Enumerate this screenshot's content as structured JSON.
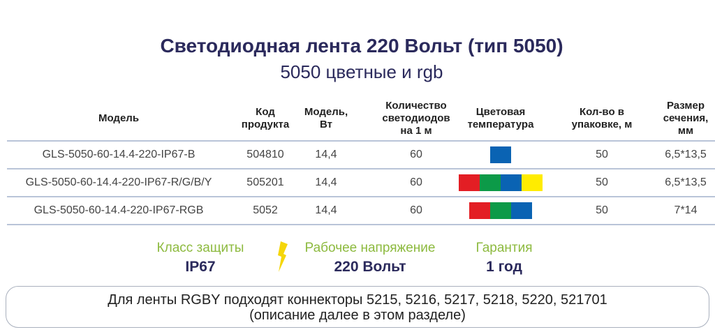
{
  "title": "Светодиодная лента 220 Вольт (тип 5050)",
  "subtitle": "5050 цветные и rgb",
  "table": {
    "headers": [
      "Модель",
      "Код\nпродукта",
      "Модель,\nВт",
      "Количество\nсветодиодов\nна 1 м",
      "Цветовая\nтемпература",
      "Кол-во в\nупаковке, м",
      "Размер\nсечения,\nмм"
    ],
    "rows": [
      {
        "model": "GLS-5050-60-14.4-220-IP67-B",
        "code": "504810",
        "watts": "14,4",
        "leds": "60",
        "colors": [
          "#0a63b3"
        ],
        "pack": "50",
        "size": "6,5*13,5"
      },
      {
        "model": "GLS-5050-60-14.4-220-IP67-R/G/B/Y",
        "code": "505201",
        "watts": "14,4",
        "leds": "60",
        "colors": [
          "#e31e24",
          "#0c9a48",
          "#0a63b3",
          "#ffec00"
        ],
        "pack": "50",
        "size": "6,5*13,5"
      },
      {
        "model": "GLS-5050-60-14.4-220-IP67-RGB",
        "code": "5052",
        "watts": "14,4",
        "leds": "60",
        "colors": [
          "#e31e24",
          "#0c9a48",
          "#0a63b3"
        ],
        "pack": "50",
        "size": "7*14"
      }
    ]
  },
  "specs": [
    {
      "label": "Класс защиты",
      "value": "IP67"
    },
    {
      "label": "Рабочее напряжение",
      "value": "220 Вольт",
      "icon": "lightning-icon"
    },
    {
      "label": "Гарантия",
      "value": "1 год"
    }
  ],
  "note": {
    "line1": "Для ленты RGBY подходят коннекторы 5215, 5216, 5217, 5218, 5220, 521701",
    "line2": "(описание далее в этом разделе)"
  },
  "colors": {
    "title": "#2b2a5c",
    "label_green": "#8dba3f",
    "lightning": "#f5d60a"
  }
}
